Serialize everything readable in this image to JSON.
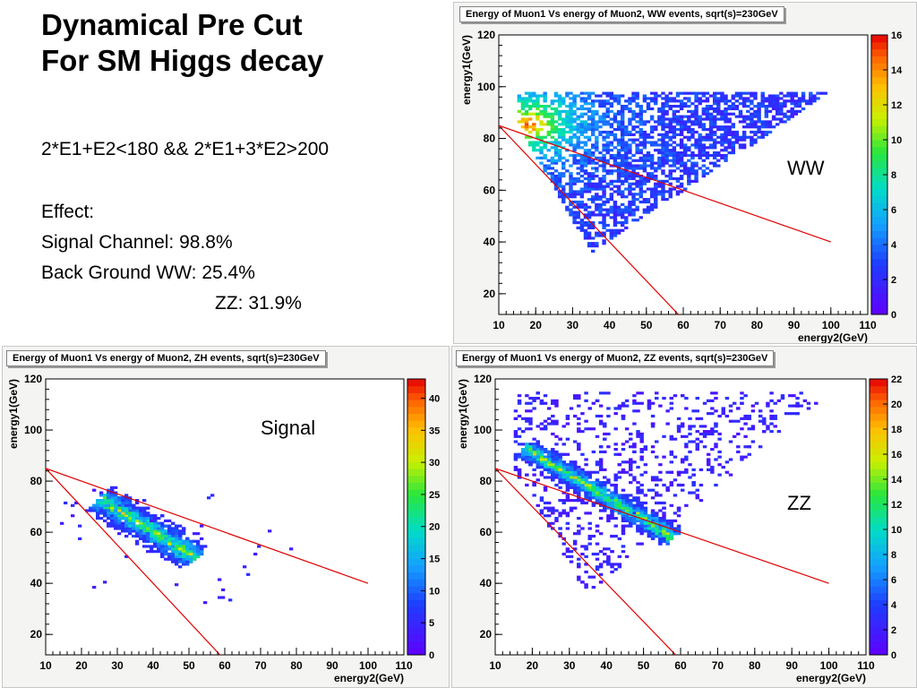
{
  "slide": {
    "title_line1": "Dynamical Pre Cut",
    "title_line2": "For SM Higgs decay",
    "condition": "2*E1+E2<180 && 2*E1+3*E2>200",
    "effect_label": "Effect:",
    "signal_line": "Signal Channel: 98.8%",
    "bg_ww_line": "Back Ground WW: 25.4%",
    "bg_zz_line": "ZZ: 31.9%"
  },
  "chart_data": [
    {
      "id": "ww",
      "type": "heatmap",
      "title": "Energy of Muon1 Vs energy of Muon2, WW events, sqrt(s)=230GeV",
      "xlabel": "energy2(GeV)",
      "ylabel": "energy1(GeV)",
      "xlim": [
        10,
        110
      ],
      "ylim": [
        12,
        120
      ],
      "xticks": [
        10,
        20,
        30,
        40,
        50,
        60,
        70,
        80,
        90,
        100,
        110
      ],
      "yticks": [
        20,
        40,
        60,
        80,
        100,
        120
      ],
      "zlim": [
        0,
        16
      ],
      "zticks": [
        0,
        2,
        4,
        6,
        8,
        10,
        12,
        14,
        16
      ],
      "annotation": "WW",
      "cut_lines": [
        {
          "name": "2*E1+E2=180",
          "x": [
            10,
            100
          ],
          "y": [
            85,
            40
          ]
        },
        {
          "name": "2*E1+3*E2=200",
          "x": [
            10,
            60
          ],
          "y": [
            85,
            10
          ]
        }
      ],
      "distribution": {
        "shape": "triangle",
        "vertices": [
          [
            15,
            98
          ],
          [
            15,
            86
          ],
          [
            35,
            36
          ],
          [
            100,
            98
          ]
        ],
        "peak": [
          18,
          85
        ]
      }
    },
    {
      "id": "zh",
      "type": "heatmap",
      "title": "Energy of Muon1 Vs energy of Muon2, ZH events, sqrt(s)=230GeV",
      "xlabel": "energy2(GeV)",
      "ylabel": "energy1(GeV)",
      "xlim": [
        10,
        110
      ],
      "ylim": [
        12,
        120
      ],
      "xticks": [
        10,
        20,
        30,
        40,
        50,
        60,
        70,
        80,
        90,
        100,
        110
      ],
      "yticks": [
        20,
        40,
        60,
        80,
        100,
        120
      ],
      "zlim": [
        0,
        43
      ],
      "zticks": [
        0,
        5,
        10,
        15,
        20,
        25,
        30,
        35,
        40
      ],
      "annotation": "Signal",
      "cut_lines": [
        {
          "name": "2*E1+E2=180",
          "x": [
            10,
            100
          ],
          "y": [
            85,
            40
          ]
        },
        {
          "name": "2*E1+3*E2=200",
          "x": [
            10,
            60
          ],
          "y": [
            85,
            10
          ]
        }
      ],
      "distribution": {
        "shape": "band",
        "from": [
          25,
          73
        ],
        "to": [
          52,
          50
        ],
        "width": 8
      }
    },
    {
      "id": "zz",
      "type": "heatmap",
      "title": "Energy of Muon1 Vs energy of Muon2, ZZ events, sqrt(s)=230GeV",
      "xlabel": "energy2(GeV)",
      "ylabel": "energy1(GeV)",
      "xlim": [
        10,
        110
      ],
      "ylim": [
        12,
        120
      ],
      "xticks": [
        10,
        20,
        30,
        40,
        50,
        60,
        70,
        80,
        90,
        100,
        110
      ],
      "yticks": [
        20,
        40,
        60,
        80,
        100,
        120
      ],
      "zlim": [
        0,
        22
      ],
      "zticks": [
        0,
        2,
        4,
        6,
        8,
        10,
        12,
        14,
        16,
        18,
        20,
        22
      ],
      "annotation": "ZZ",
      "cut_lines": [
        {
          "name": "2*E1+E2=180",
          "x": [
            10,
            100
          ],
          "y": [
            85,
            40
          ]
        },
        {
          "name": "2*E1+3*E2=200",
          "x": [
            10,
            60
          ],
          "y": [
            85,
            10
          ]
        }
      ],
      "distribution": {
        "shape": "band+triangle",
        "from": [
          18,
          93
        ],
        "to": [
          58,
          58
        ],
        "width": 6,
        "vertices": [
          [
            15,
            115
          ],
          [
            15,
            85
          ],
          [
            35,
            36
          ],
          [
            100,
            115
          ]
        ]
      }
    }
  ]
}
